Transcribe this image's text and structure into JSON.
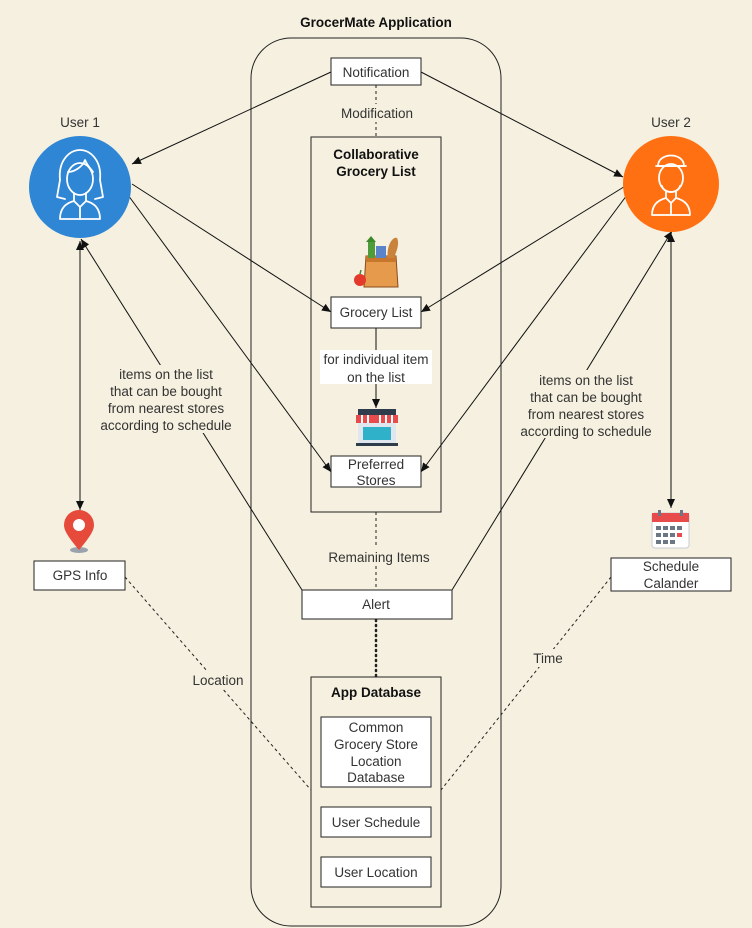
{
  "title": "GrocerMate Application",
  "user1": {
    "label": "User 1",
    "color": "#2e86d4"
  },
  "user2": {
    "label": "User 2",
    "color": "#ff7012"
  },
  "notification": "Notification",
  "modification": "Modification",
  "collab": {
    "line1": "Collaborative",
    "line2": "Grocery List"
  },
  "grocery_list": "Grocery List",
  "for_individual": {
    "line1": "for individual item",
    "line2": "on the list"
  },
  "preferred_stores": {
    "line1": "Preferred",
    "line2": "Stores"
  },
  "left_note": [
    "items on the list",
    "that can be bought",
    "from nearest stores",
    "according to schedule"
  ],
  "right_note": [
    "items on the list",
    "that can be bought",
    "from nearest stores",
    "according to schedule"
  ],
  "remaining_items": "Remaining Items",
  "alert": "Alert",
  "gps_info": "GPS Info",
  "schedule_calander": {
    "line1": "Schedule",
    "line2": "Calander"
  },
  "location": "Location",
  "time": "Time",
  "app_database": {
    "title": "App Database",
    "common_db": [
      "Common",
      "Grocery Store",
      "Location",
      "Database"
    ],
    "user_schedule": "User Schedule",
    "user_location": "User Location"
  },
  "icons": {
    "user1": "woman-avatar-icon",
    "user2": "man-cap-avatar-icon",
    "grocery": "grocery-bag-icon",
    "store": "storefront-icon",
    "gps": "map-pin-icon",
    "calendar": "calendar-icon"
  }
}
